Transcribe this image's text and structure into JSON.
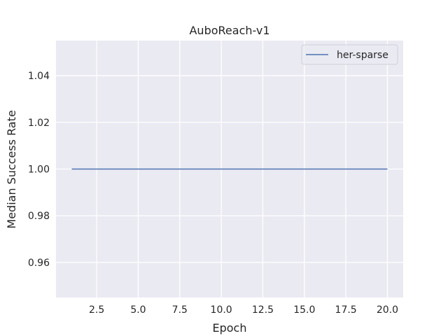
{
  "chart_data": {
    "type": "line",
    "title": "AuboReach-v1",
    "xlabel": "Epoch",
    "ylabel": "Median Success Rate",
    "xlim": [
      0.05,
      20.95
    ],
    "ylim": [
      0.945,
      1.055
    ],
    "xticks": [
      2.5,
      5.0,
      7.5,
      10.0,
      12.5,
      15.0,
      17.5,
      20.0
    ],
    "xtick_labels": [
      "2.5",
      "5.0",
      "7.5",
      "10.0",
      "12.5",
      "15.0",
      "17.5",
      "20.0"
    ],
    "yticks": [
      0.96,
      0.98,
      1.0,
      1.02,
      1.04
    ],
    "ytick_labels": [
      "0.96",
      "0.98",
      "1.00",
      "1.02",
      "1.04"
    ],
    "grid": true,
    "legend_position": "top-right",
    "series": [
      {
        "name": "her-sparse",
        "color": "#4c72b0",
        "x": [
          1,
          20
        ],
        "y": [
          1.0,
          1.0
        ]
      }
    ]
  }
}
